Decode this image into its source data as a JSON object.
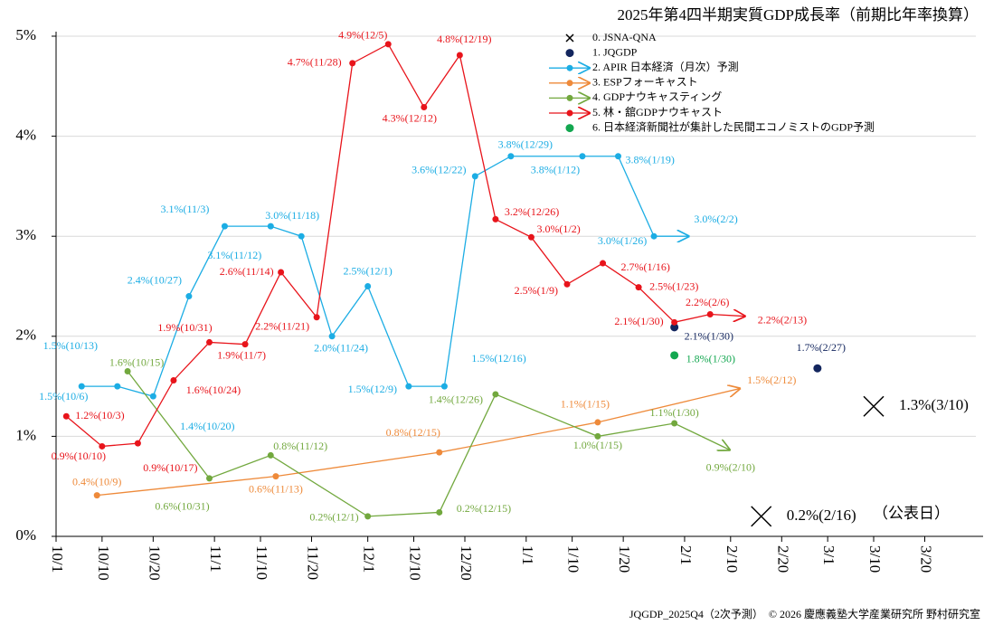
{
  "chart_data": {
    "type": "line",
    "title": "2025年第4四半期実質GDP成長率（前期比年率換算）",
    "footer": "JQGDP_2025Q4（2次予測）　© 2026 慶應義塾大学産業研究所 野村研究室",
    "annotation": "（公表日）",
    "xlim": [
      "10/1",
      "3/30"
    ],
    "xticks": [
      "10/1",
      "10/10",
      "10/20",
      "11/1",
      "11/10",
      "11/20",
      "12/1",
      "12/10",
      "12/20",
      "1/1",
      "1/10",
      "1/20",
      "2/1",
      "2/10",
      "2/20",
      "3/1",
      "3/10",
      "3/20"
    ],
    "ylim": [
      0,
      5
    ],
    "yticks": [
      {
        "value": 0,
        "label": "0%"
      },
      {
        "value": 1,
        "label": "1%"
      },
      {
        "value": 2,
        "label": "2%"
      },
      {
        "value": 3,
        "label": "3%"
      },
      {
        "value": 4,
        "label": "4%"
      },
      {
        "value": 5,
        "label": "5%"
      }
    ],
    "grid": true,
    "legend": "top-right",
    "series": [
      {
        "name": "0. JSNA-QNA",
        "color": "#000000",
        "marker": "x",
        "line": false,
        "x": [
          "2/16",
          "3/10"
        ],
        "values": [
          0.2,
          1.3
        ],
        "value_labels": [
          "0.2%(2/16)",
          "1.3%(3/10)"
        ]
      },
      {
        "name": "1. JQGDP",
        "color": "#13265e",
        "marker": "dot",
        "line": false,
        "x": [
          "1/30",
          "2/27"
        ],
        "values": [
          2.09,
          1.68
        ],
        "value_labels": [
          "2.1%(1/30)",
          "1.7%(2/27)"
        ]
      },
      {
        "name": "2. APIR 日本経済（月次）予測",
        "color": "#1cade4",
        "marker": "dot",
        "line": true,
        "x": [
          "10/6",
          "10/13",
          "10/20",
          "10/27",
          "11/3",
          "11/12",
          "11/18",
          "11/24",
          "12/1",
          "12/9",
          "12/16",
          "12/22",
          "12/29",
          "1/12",
          "1/19",
          "1/26",
          "2/2"
        ],
        "values": [
          1.5,
          1.5,
          1.4,
          2.4,
          3.1,
          3.1,
          3.0,
          2.0,
          2.5,
          1.5,
          1.5,
          3.6,
          3.8,
          3.8,
          3.8,
          3.0,
          3.0
        ],
        "value_labels": [
          "1.5%(10/6)",
          "1.5%(10/13)",
          "1.4%(10/20)",
          "2.4%(10/27)",
          "3.1%(11/3)",
          "3.1%(11/12)",
          "3.0%(11/18)",
          "2.0%(11/24)",
          "2.5%(12/1)",
          "1.5%(12/9)",
          "1.5%(12/16)",
          "3.6%(12/22)",
          "3.8%(12/29)",
          "3.8%(1/12)",
          "3.8%(1/19)",
          "3.0%(1/26)",
          "3.0%(2/2)"
        ]
      },
      {
        "name": "3. ESPフォーキャスト",
        "color": "#ee8a3a",
        "marker": "dot",
        "line": true,
        "x": [
          "10/9",
          "11/13",
          "12/15",
          "1/15",
          "2/12"
        ],
        "values": [
          0.41,
          0.6,
          0.84,
          1.14,
          1.48
        ],
        "value_labels": [
          "0.4%(10/9)",
          "0.6%(11/13)",
          "0.8%(12/15)",
          "1.1%(1/15)",
          "1.5%(2/12)"
        ]
      },
      {
        "name": "4. GDPナウキャスティング",
        "color": "#72a83e",
        "marker": "dot",
        "line": true,
        "x": [
          "10/15",
          "10/31",
          "11/12",
          "12/1",
          "12/15",
          "12/26",
          "1/15",
          "1/30",
          "2/10"
        ],
        "values": [
          1.65,
          0.58,
          0.81,
          0.2,
          0.24,
          1.42,
          1.0,
          1.13,
          0.86
        ],
        "value_labels": [
          "1.6%(10/15)",
          "0.6%(10/31)",
          "0.8%(11/12)",
          "0.2%(12/1)",
          "0.2%(12/15)",
          "1.4%(12/26)",
          "1.0%(1/15)",
          "1.1%(1/30)",
          "0.9%(2/10)"
        ]
      },
      {
        "name": "5. 林・舘GDPナウキャスト",
        "color": "#e8141b",
        "marker": "dot",
        "line": true,
        "x": [
          "10/3",
          "10/10",
          "10/17",
          "10/24",
          "10/31",
          "11/7",
          "11/14",
          "11/21",
          "11/28",
          "12/5",
          "12/12",
          "12/19",
          "12/26",
          "1/2",
          "1/9",
          "1/16",
          "1/23",
          "1/30",
          "2/6",
          "2/13"
        ],
        "values": [
          1.2,
          0.9,
          0.93,
          1.56,
          1.94,
          1.92,
          2.64,
          2.19,
          4.73,
          4.92,
          4.29,
          4.81,
          3.17,
          2.99,
          2.52,
          2.73,
          2.49,
          2.14,
          2.22,
          2.2
        ],
        "value_labels": [
          "1.2%(10/3)",
          "0.9%(10/10)",
          "0.9%(10/17)",
          "1.6%(10/24)",
          "1.9%(10/31)",
          "1.9%(11/7)",
          "2.6%(11/14)",
          "2.2%(11/21)",
          "4.7%(11/28)",
          "4.9%(12/5)",
          "4.3%(12/12)",
          "4.8%(12/19)",
          "3.2%(12/26)",
          "3.0%(1/2)",
          "2.5%(1/9)",
          "2.7%(1/16)",
          "2.5%(1/23)",
          "2.1%(1/30)",
          "2.2%(2/6)",
          "2.2%(2/13)"
        ]
      },
      {
        "name": "6. 日本経済新聞社が集計した民間エコノミストのGDP予測",
        "color": "#13a750",
        "marker": "dot",
        "line": false,
        "x": [
          "1/30"
        ],
        "values": [
          1.81
        ],
        "value_labels": [
          "1.8%(1/30)"
        ]
      }
    ]
  }
}
